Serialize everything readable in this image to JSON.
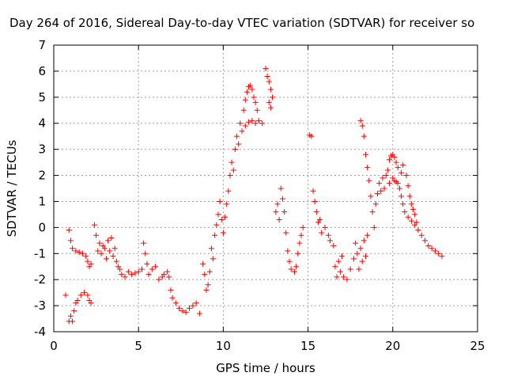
{
  "chart_data": {
    "type": "scatter",
    "title": "Day 264 of 2016, Sidereal Day-to-day VTEC variation (SDTVAR) for receiver so",
    "xlabel": "GPS time / hours",
    "ylabel": "SDTVAR / TECUs",
    "xlim": [
      0,
      25
    ],
    "ylim": [
      -4,
      7
    ],
    "xticks": [
      "0",
      "5",
      "10",
      "15",
      "20",
      "25"
    ],
    "yticks": [
      "-4",
      "-3",
      "-2",
      "-1",
      "0",
      "1",
      "2",
      "3",
      "4",
      "5",
      "6",
      "7"
    ],
    "grid": true,
    "marker": "plus",
    "color": "#ff0000",
    "series": [
      {
        "points": [
          [
            0.7,
            -2.6
          ],
          [
            0.9,
            -3.6
          ],
          [
            1.0,
            -3.4
          ],
          [
            1.1,
            -3.6
          ],
          [
            1.2,
            -3.2
          ],
          [
            1.3,
            -2.9
          ],
          [
            1.4,
            -2.8
          ],
          [
            1.6,
            -2.6
          ],
          [
            1.8,
            -2.5
          ],
          [
            2.0,
            -2.6
          ],
          [
            2.1,
            -2.8
          ],
          [
            2.2,
            -2.9
          ],
          [
            0.9,
            -0.1
          ],
          [
            1.0,
            -0.5
          ],
          [
            1.1,
            -0.8
          ],
          [
            1.3,
            -0.9
          ],
          [
            1.5,
            -0.95
          ],
          [
            1.7,
            -1.0
          ],
          [
            1.9,
            -1.1
          ],
          [
            2.0,
            -1.3
          ],
          [
            2.1,
            -1.5
          ],
          [
            2.2,
            -1.4
          ],
          [
            2.4,
            0.1
          ],
          [
            2.5,
            -0.3
          ],
          [
            2.6,
            -0.9
          ],
          [
            2.7,
            -0.6
          ],
          [
            2.8,
            -1.0
          ],
          [
            2.9,
            -0.7
          ],
          [
            3.0,
            -0.8
          ],
          [
            3.1,
            -1.2
          ],
          [
            3.2,
            -0.5
          ],
          [
            3.3,
            -0.9
          ],
          [
            3.4,
            -0.4
          ],
          [
            3.5,
            -1.1
          ],
          [
            3.6,
            -0.8
          ],
          [
            3.7,
            -1.3
          ],
          [
            3.8,
            -1.5
          ],
          [
            3.9,
            -1.6
          ],
          [
            4.0,
            -1.8
          ],
          [
            4.2,
            -1.9
          ],
          [
            4.4,
            -1.7
          ],
          [
            4.6,
            -1.8
          ],
          [
            4.8,
            -1.75
          ],
          [
            5.0,
            -1.7
          ],
          [
            5.2,
            -1.6
          ],
          [
            5.3,
            -0.6
          ],
          [
            5.4,
            -1.0
          ],
          [
            5.5,
            -1.4
          ],
          [
            5.6,
            -1.8
          ],
          [
            5.8,
            -1.6
          ],
          [
            6.0,
            -1.5
          ],
          [
            6.2,
            -2.0
          ],
          [
            6.4,
            -1.9
          ],
          [
            6.5,
            -1.8
          ],
          [
            6.7,
            -1.7
          ],
          [
            6.8,
            -1.9
          ],
          [
            6.9,
            -2.4
          ],
          [
            7.0,
            -2.7
          ],
          [
            7.2,
            -2.9
          ],
          [
            7.4,
            -3.1
          ],
          [
            7.6,
            -3.2
          ],
          [
            7.8,
            -3.25
          ],
          [
            8.0,
            -3.1
          ],
          [
            8.2,
            -3.0
          ],
          [
            8.4,
            -2.9
          ],
          [
            8.6,
            -3.3
          ],
          [
            8.8,
            -1.4
          ],
          [
            8.9,
            -1.8
          ],
          [
            9.0,
            -2.4
          ],
          [
            9.1,
            -2.2
          ],
          [
            9.2,
            -1.7
          ],
          [
            9.3,
            -0.8
          ],
          [
            9.4,
            -1.2
          ],
          [
            9.5,
            -0.3
          ],
          [
            9.6,
            0.1
          ],
          [
            9.7,
            0.5
          ],
          [
            9.8,
            1.0
          ],
          [
            9.9,
            0.3
          ],
          [
            10.0,
            -0.2
          ],
          [
            10.1,
            0.4
          ],
          [
            10.2,
            0.9
          ],
          [
            10.3,
            1.4
          ],
          [
            10.4,
            2.0
          ],
          [
            10.5,
            2.5
          ],
          [
            10.6,
            2.2
          ],
          [
            10.7,
            3.0
          ],
          [
            10.8,
            3.5
          ],
          [
            10.9,
            3.2
          ],
          [
            11.0,
            4.0
          ],
          [
            11.1,
            3.7
          ],
          [
            11.2,
            4.5
          ],
          [
            11.3,
            4.9
          ],
          [
            11.4,
            5.2
          ],
          [
            11.5,
            5.4
          ],
          [
            11.6,
            5.45
          ],
          [
            11.7,
            5.3
          ],
          [
            11.8,
            5.0
          ],
          [
            11.9,
            4.8
          ],
          [
            12.0,
            4.5
          ],
          [
            11.3,
            3.9
          ],
          [
            11.5,
            4.05
          ],
          [
            11.7,
            4.1
          ],
          [
            11.9,
            4.0
          ],
          [
            12.1,
            4.1
          ],
          [
            12.3,
            4.0
          ],
          [
            12.5,
            6.1
          ],
          [
            12.6,
            5.8
          ],
          [
            12.7,
            5.6
          ],
          [
            12.8,
            5.3
          ],
          [
            12.9,
            5.0
          ],
          [
            12.7,
            4.8
          ],
          [
            12.8,
            4.6
          ],
          [
            13.1,
            0.6
          ],
          [
            13.2,
            0.9
          ],
          [
            13.3,
            0.3
          ],
          [
            13.4,
            1.5
          ],
          [
            13.5,
            1.1
          ],
          [
            13.6,
            0.6
          ],
          [
            13.7,
            -0.2
          ],
          [
            13.8,
            -0.9
          ],
          [
            13.9,
            -1.3
          ],
          [
            14.0,
            -1.6
          ],
          [
            14.2,
            -1.7
          ],
          [
            14.3,
            -1.5
          ],
          [
            14.4,
            -1.0
          ],
          [
            14.5,
            -0.6
          ],
          [
            14.6,
            -0.3
          ],
          [
            14.7,
            0.0
          ],
          [
            15.1,
            3.55
          ],
          [
            15.2,
            3.5
          ],
          [
            15.3,
            1.4
          ],
          [
            15.4,
            1.0
          ],
          [
            15.5,
            0.6
          ],
          [
            15.6,
            0.2
          ],
          [
            15.7,
            0.3
          ],
          [
            15.8,
            -0.2
          ],
          [
            16.0,
            0.0
          ],
          [
            16.2,
            -0.3
          ],
          [
            16.3,
            -0.5
          ],
          [
            16.5,
            -0.7
          ],
          [
            16.6,
            -1.5
          ],
          [
            16.7,
            -1.9
          ],
          [
            16.8,
            -1.3
          ],
          [
            16.9,
            -1.7
          ],
          [
            17.0,
            -1.1
          ],
          [
            17.1,
            -1.9
          ],
          [
            17.3,
            -2.0
          ],
          [
            17.5,
            -1.6
          ],
          [
            17.7,
            -1.2
          ],
          [
            17.8,
            -0.6
          ],
          [
            17.9,
            -1.0
          ],
          [
            18.0,
            -1.6
          ],
          [
            18.1,
            -0.8
          ],
          [
            18.2,
            -1.3
          ],
          [
            18.3,
            -0.5
          ],
          [
            18.4,
            -1.1
          ],
          [
            18.5,
            -0.3
          ],
          [
            18.1,
            4.1
          ],
          [
            18.2,
            3.9
          ],
          [
            18.3,
            3.5
          ],
          [
            18.4,
            2.8
          ],
          [
            18.5,
            2.3
          ],
          [
            18.6,
            1.8
          ],
          [
            18.7,
            1.2
          ],
          [
            18.8,
            0.6
          ],
          [
            18.9,
            0.0
          ],
          [
            19.0,
            0.9
          ],
          [
            19.1,
            1.3
          ],
          [
            19.2,
            1.7
          ],
          [
            19.3,
            1.4
          ],
          [
            19.4,
            1.9
          ],
          [
            19.5,
            1.5
          ],
          [
            19.6,
            2.0
          ],
          [
            19.7,
            2.2
          ],
          [
            19.8,
            1.7
          ],
          [
            19.8,
            2.6
          ],
          [
            19.9,
            2.75
          ],
          [
            20.0,
            2.8
          ],
          [
            20.1,
            2.7
          ],
          [
            20.2,
            2.5
          ],
          [
            20.3,
            2.3
          ],
          [
            20.5,
            2.1
          ],
          [
            20.6,
            2.4
          ],
          [
            20.0,
            1.9
          ],
          [
            20.1,
            1.8
          ],
          [
            20.2,
            1.75
          ],
          [
            20.3,
            1.7
          ],
          [
            20.4,
            1.5
          ],
          [
            20.5,
            1.2
          ],
          [
            20.6,
            0.9
          ],
          [
            20.7,
            0.6
          ],
          [
            20.9,
            0.4
          ],
          [
            21.1,
            0.25
          ],
          [
            21.3,
            0.1
          ],
          [
            20.8,
            2.0
          ],
          [
            20.9,
            1.6
          ],
          [
            21.0,
            1.2
          ],
          [
            21.1,
            0.9
          ],
          [
            21.2,
            0.7
          ],
          [
            21.3,
            0.5
          ],
          [
            21.4,
            0.2
          ],
          [
            21.5,
            -0.1
          ],
          [
            21.7,
            -0.3
          ],
          [
            21.9,
            -0.5
          ],
          [
            22.1,
            -0.7
          ],
          [
            22.3,
            -0.8
          ],
          [
            22.5,
            -0.9
          ],
          [
            22.7,
            -1.0
          ],
          [
            22.9,
            -1.1
          ]
        ]
      }
    ]
  }
}
